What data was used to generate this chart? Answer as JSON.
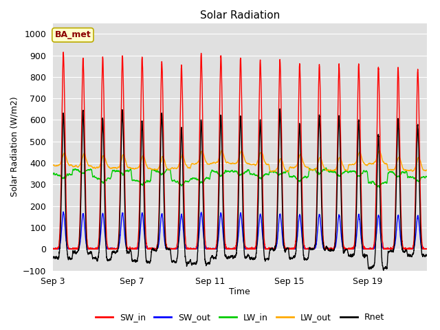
{
  "title": "Solar Radiation",
  "xlabel": "Time",
  "ylabel": "Solar Radiation (W/m2)",
  "ylim": [
    -100,
    1050
  ],
  "tick_labels": [
    "Sep 3",
    "Sep 7",
    "Sep 11",
    "Sep 15",
    "Sep 19"
  ],
  "tick_positions": [
    0,
    4,
    8,
    12,
    16
  ],
  "background_color": "#e0e0e0",
  "grid_color": "#ffffff",
  "annotation_text": "BA_met",
  "annotation_bg": "#ffffcc",
  "annotation_border": "#bbaa00",
  "annotation_text_color": "#8b0000",
  "series": {
    "SW_in": {
      "color": "#ff0000",
      "lw": 1.0
    },
    "SW_out": {
      "color": "#0000ff",
      "lw": 1.0
    },
    "LW_in": {
      "color": "#00cc00",
      "lw": 1.0
    },
    "LW_out": {
      "color": "#ffaa00",
      "lw": 1.0
    },
    "Rnet": {
      "color": "#000000",
      "lw": 1.0
    }
  },
  "n_days": 19,
  "points_per_day": 144,
  "yticks": [
    -100,
    0,
    100,
    200,
    300,
    400,
    500,
    600,
    700,
    800,
    900,
    1000
  ]
}
